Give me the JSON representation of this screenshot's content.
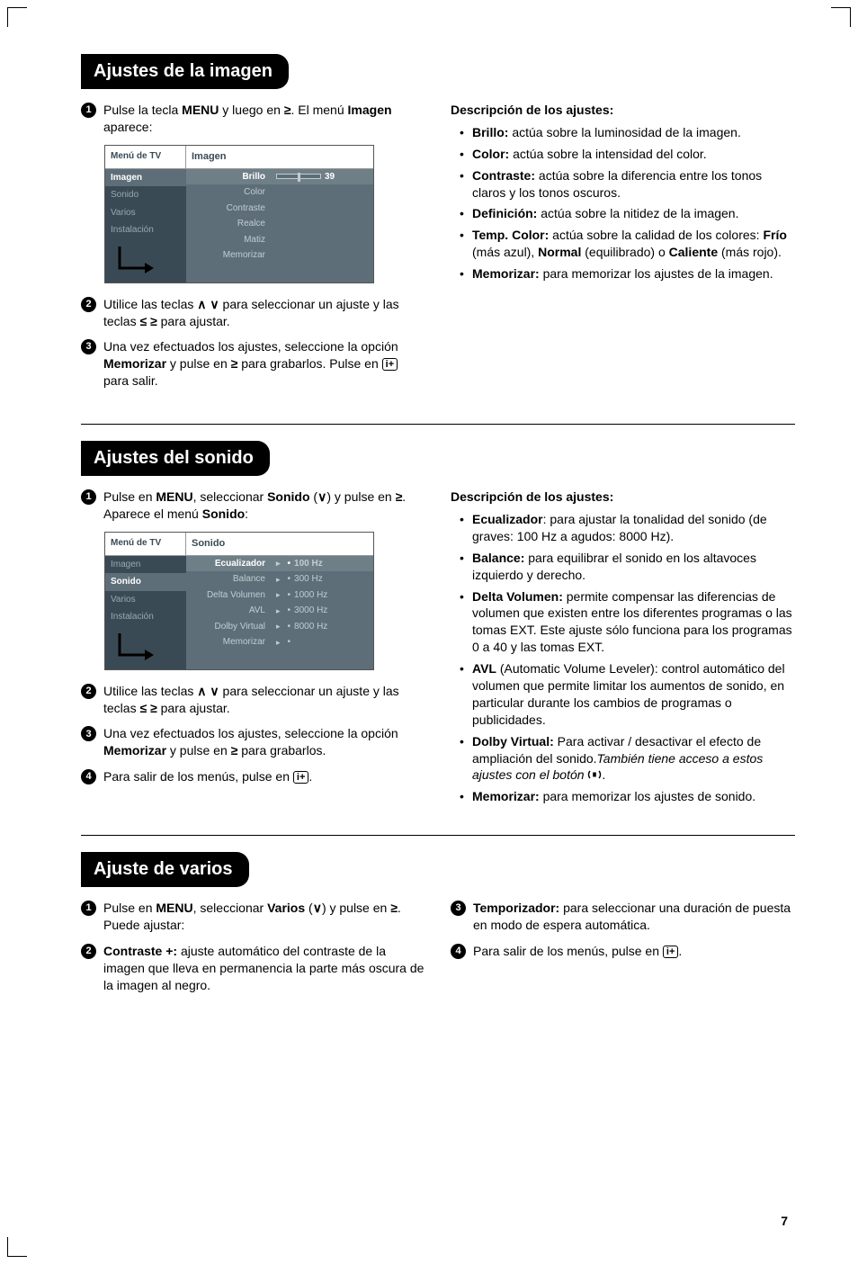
{
  "page_number": "7",
  "sections": {
    "imagen": {
      "title": "Ajustes de la imagen",
      "steps": [
        "Pulse la tecla <b>MENU</b> y luego en <g>≥</g>. El menú <b>Imagen</b> aparece:",
        "Utilice las teclas <g>∧ ∨</g> para seleccionar un ajuste y las teclas <g>≤ ≥</g> para ajustar.",
        "Una vez efectuados los ajustes, seleccione la opción <b>Memorizar</b> y pulse en <g>≥</g> para grabarlos. Pulse en <ibox>i+</ibox> para salir."
      ],
      "desc_title": "Descripción de los ajustes:",
      "desc": [
        "<b>Brillo:</b> actúa sobre la luminosidad de la imagen.",
        "<b>Color:</b> actúa sobre la intensidad del color.",
        "<b>Contraste:</b> actúa sobre la diferencia entre los tonos claros y los tonos oscuros.",
        "<b>Definición:</b> actúa sobre la nitidez de la imagen.",
        "<b>Temp. Color:</b> actúa sobre la calidad de los colores: <b>Frío</b> (más azul), <b>Normal</b> (equilibrado) o <b>Caliente</b> (más rojo).",
        "<b>Memorizar:</b> para memorizar los ajustes de la imagen."
      ],
      "menu": {
        "header_left": "Menú de TV",
        "header_right": "Imagen",
        "left_items": [
          "Imagen",
          "Sonido",
          "Varios",
          "Instalación"
        ],
        "left_active_index": 0,
        "right_rows": [
          {
            "label": "Brillo",
            "type": "slider",
            "value": "39",
            "selected": true
          },
          {
            "label": "Color",
            "type": "plain"
          },
          {
            "label": "Contraste",
            "type": "plain"
          },
          {
            "label": "Realce",
            "type": "plain"
          },
          {
            "label": "Matiz",
            "type": "plain"
          },
          {
            "label": "Memorizar",
            "type": "plain"
          }
        ]
      }
    },
    "sonido": {
      "title": "Ajustes del sonido",
      "steps": [
        "Pulse en <b>MENU</b>, seleccionar <b>Sonido</b> (<g>∨</g>) y pulse en <g>≥</g>. Aparece el menú <b>Sonido</b>:",
        "Utilice las teclas <g>∧ ∨</g> para seleccionar un ajuste y las teclas <g>≤ ≥</g> para ajustar.",
        "Una vez efectuados los ajustes, seleccione la opción <b>Memorizar</b> y pulse en <g>≥</g> para grabarlos.",
        "Para salir de los menús, pulse en <ibox>i+</ibox>."
      ],
      "desc_title": "Descripción de los ajustes:",
      "desc": [
        "<b>Ecualizador</b>: para ajustar la tonalidad del sonido (de graves: 100 Hz a agudos: 8000 Hz).",
        "<b>Balance:</b> para equilibrar el sonido en los altavoces izquierdo y derecho.",
        "<b>Delta Volumen:</b> permite compensar las diferencias de volumen que existen entre los diferentes programas o las tomas EXT. Este ajuste sólo funciona para los programas 0 a 40 y las tomas EXT.",
        "<b>AVL</b> (Automatic Volume Leveler): control automático del volumen que permite limitar los aumentos de sonido, en particular durante los cambios de programas o publicidades.",
        "<b>Dolby Virtual:</b> Para activar / desactivar el efecto de ampliación del sonido.<i>También tiene acceso a estos ajustes con el botón</i> <surr></surr>.",
        "<b>Memorizar:</b> para memorizar los ajustes de sonido."
      ],
      "menu": {
        "header_left": "Menú de TV",
        "header_right": "Sonido",
        "left_items": [
          "Imagen",
          "Sonido",
          "Varios",
          "Instalación"
        ],
        "left_active_index": 1,
        "right_rows": [
          {
            "label": "Ecualizador",
            "type": "value",
            "value": "100 Hz",
            "selected": true
          },
          {
            "label": "Balance",
            "type": "value",
            "value": "300 Hz"
          },
          {
            "label": "Delta Volumen",
            "type": "value",
            "value": "1000 Hz"
          },
          {
            "label": "AVL",
            "type": "value",
            "value": "3000 Hz"
          },
          {
            "label": "Dolby Virtual",
            "type": "value",
            "value": "8000 Hz"
          },
          {
            "label": "Memorizar",
            "type": "value",
            "value": ""
          }
        ]
      }
    },
    "varios": {
      "title": "Ajuste de varios",
      "left_steps": [
        {
          "n": "1",
          "html": "Pulse en <b>MENU</b>, seleccionar <b>Varios</b> (<g>∨</g>) y pulse en <g>≥</g>. Puede ajustar:"
        },
        {
          "n": "2",
          "html": "<b>Contraste +:</b> ajuste automático del contraste de la imagen que lleva en permanencia la parte más oscura de la imagen al negro."
        }
      ],
      "right_steps": [
        {
          "n": "3",
          "html": "<b>Temporizador:</b> para seleccionar una duración de puesta en modo de espera automática."
        },
        {
          "n": "4",
          "html": "Para salir de los menús, pulse en <ibox>i+</ibox>."
        }
      ]
    }
  }
}
